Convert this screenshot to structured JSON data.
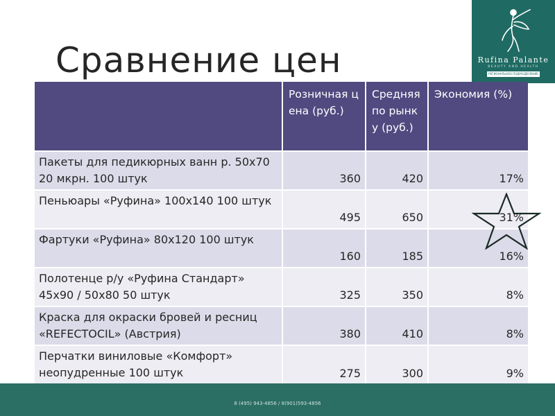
{
  "slide": {
    "title": "Сравнение цен"
  },
  "logo": {
    "brand": "Rufina Palante",
    "tagline": "BEAUTY AND HEALTH",
    "badge": "РЕГИОНАЛЬНОЕ ПОДРАЗДЕЛЕНИЕ"
  },
  "table": {
    "headers": [
      "",
      "Розничная цена (руб.)",
      "Средняя по рынку (руб.)",
      "Экономия (%)"
    ],
    "rows": [
      {
        "name": "Пакеты для педикюрных ванн р. 50х70 20 мкрн. 100 штук",
        "retail": "360",
        "market": "420",
        "saving": "17%"
      },
      {
        "name": "Пеньюары «Руфина» 100х140 100 штук",
        "retail": "495",
        "market": "650",
        "saving": "31%"
      },
      {
        "name": "Фартуки «Руфина» 80х120 100 штук",
        "retail": "160",
        "market": "185",
        "saving": "16%"
      },
      {
        "name": "Полотенце р/у «Руфина Стандарт» 45х90 / 50х80 50 штук",
        "retail": "325",
        "market": "350",
        "saving": "8%"
      },
      {
        "name": "Краска для окраски бровей и ресниц «REFECTOCIL» (Австрия)",
        "retail": "380",
        "market": "410",
        "saving": "8%"
      },
      {
        "name": "Перчатки виниловые «Комфорт» неопудренные 100 штук",
        "retail": "275",
        "market": "300",
        "saving": "9%"
      }
    ]
  },
  "footer": {
    "phones": "8 (495) 943-4856 / 8(901)593-4856"
  },
  "colors": {
    "header_bg": "#504a80",
    "row_odd": "#dcdbe9",
    "row_even": "#ededf3",
    "footer_bg": "#2b6e64",
    "logo_bg": "#1f6b63"
  },
  "icons": {
    "highlight": "star-outline-icon",
    "logo": "fairy-logo-icon"
  }
}
